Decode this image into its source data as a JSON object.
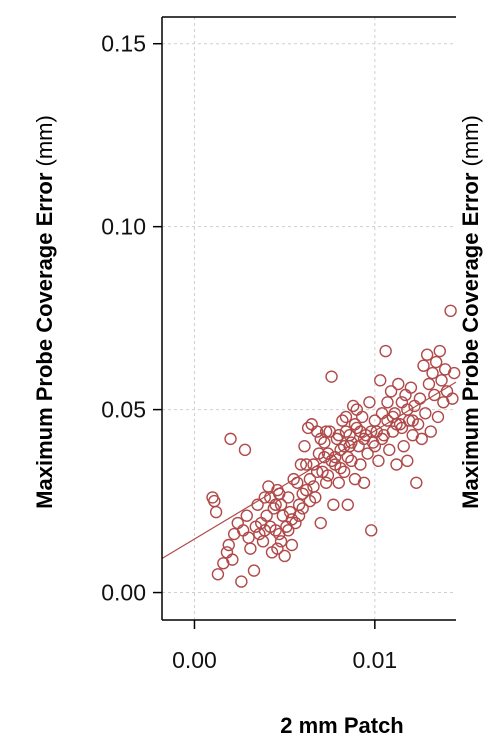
{
  "chart_data": {
    "type": "scatter",
    "ylabel_bold": "Maximum Probe Coverage Error",
    "ylabel_unit": " (mm)",
    "xlabel": "2 mm Patch",
    "xlim": [
      -0.0018,
      0.0145
    ],
    "ylim": [
      -0.0075,
      0.1573
    ],
    "x_ticks": [
      0.0,
      0.01
    ],
    "x_tick_labels": [
      "0.00",
      "0.01"
    ],
    "y_ticks": [
      0.0,
      0.05,
      0.1,
      0.15
    ],
    "y_tick_labels": [
      "0.00",
      "0.05",
      "0.10",
      "0.15"
    ],
    "grid": true,
    "marker_color": "#b04a4a",
    "fit_line": {
      "x1": -0.0018,
      "y1": 0.0093,
      "x2": 0.0145,
      "y2": 0.0575
    },
    "points": [
      [
        0.001,
        0.026
      ],
      [
        0.0011,
        0.025
      ],
      [
        0.0012,
        0.022
      ],
      [
        0.0013,
        0.005
      ],
      [
        0.0016,
        0.008
      ],
      [
        0.0018,
        0.011
      ],
      [
        0.0019,
        0.013
      ],
      [
        0.002,
        0.042
      ],
      [
        0.0021,
        0.009
      ],
      [
        0.0022,
        0.016
      ],
      [
        0.0024,
        0.019
      ],
      [
        0.0026,
        0.003
      ],
      [
        0.0027,
        0.017
      ],
      [
        0.0028,
        0.039
      ],
      [
        0.0029,
        0.021
      ],
      [
        0.003,
        0.015
      ],
      [
        0.0031,
        0.012
      ],
      [
        0.0033,
        0.006
      ],
      [
        0.0034,
        0.018
      ],
      [
        0.0035,
        0.024
      ],
      [
        0.0036,
        0.016
      ],
      [
        0.0037,
        0.019
      ],
      [
        0.0038,
        0.014
      ],
      [
        0.0039,
        0.026
      ],
      [
        0.004,
        0.021
      ],
      [
        0.0041,
        0.029
      ],
      [
        0.0042,
        0.018
      ],
      [
        0.0043,
        0.011
      ],
      [
        0.0044,
        0.023
      ],
      [
        0.0045,
        0.017
      ],
      [
        0.0046,
        0.028
      ],
      [
        0.0047,
        0.016
      ],
      [
        0.0048,
        0.024
      ],
      [
        0.0049,
        0.021
      ],
      [
        0.005,
        0.01
      ],
      [
        0.0051,
        0.018
      ],
      [
        0.0052,
        0.026
      ],
      [
        0.0053,
        0.022
      ],
      [
        0.0054,
        0.013
      ],
      [
        0.0055,
        0.031
      ],
      [
        0.0056,
        0.019
      ],
      [
        0.0057,
        0.03
      ],
      [
        0.0058,
        0.024
      ],
      [
        0.0059,
        0.035
      ],
      [
        0.006,
        0.027
      ],
      [
        0.0061,
        0.04
      ],
      [
        0.0062,
        0.028
      ],
      [
        0.0063,
        0.045
      ],
      [
        0.0064,
        0.031
      ],
      [
        0.0065,
        0.046
      ],
      [
        0.0066,
        0.035
      ],
      [
        0.0067,
        0.026
      ],
      [
        0.0068,
        0.044
      ],
      [
        0.0069,
        0.038
      ],
      [
        0.007,
        0.019
      ],
      [
        0.0071,
        0.033
      ],
      [
        0.0072,
        0.041
      ],
      [
        0.0073,
        0.03
      ],
      [
        0.0074,
        0.038
      ],
      [
        0.0075,
        0.044
      ],
      [
        0.0076,
        0.059
      ],
      [
        0.0077,
        0.024
      ],
      [
        0.0078,
        0.035
      ],
      [
        0.0079,
        0.042
      ],
      [
        0.008,
        0.03
      ],
      [
        0.0081,
        0.039
      ],
      [
        0.0082,
        0.047
      ],
      [
        0.0083,
        0.033
      ],
      [
        0.0084,
        0.044
      ],
      [
        0.0085,
        0.024
      ],
      [
        0.0086,
        0.04
      ],
      [
        0.0087,
        0.036
      ],
      [
        0.0088,
        0.051
      ],
      [
        0.0089,
        0.031
      ],
      [
        0.009,
        0.045
      ],
      [
        0.0091,
        0.04
      ],
      [
        0.0092,
        0.035
      ],
      [
        0.0093,
        0.048
      ],
      [
        0.0094,
        0.03
      ],
      [
        0.0095,
        0.043
      ],
      [
        0.0096,
        0.038
      ],
      [
        0.0097,
        0.052
      ],
      [
        0.0098,
        0.017
      ],
      [
        0.0099,
        0.041
      ],
      [
        0.01,
        0.047
      ],
      [
        0.0101,
        0.044
      ],
      [
        0.0102,
        0.036
      ],
      [
        0.0103,
        0.058
      ],
      [
        0.0104,
        0.049
      ],
      [
        0.0105,
        0.043
      ],
      [
        0.0106,
        0.066
      ],
      [
        0.0107,
        0.047
      ],
      [
        0.0108,
        0.039
      ],
      [
        0.0109,
        0.055
      ],
      [
        0.011,
        0.044
      ],
      [
        0.0111,
        0.049
      ],
      [
        0.0112,
        0.035
      ],
      [
        0.0113,
        0.057
      ],
      [
        0.0114,
        0.046
      ],
      [
        0.0115,
        0.052
      ],
      [
        0.0116,
        0.04
      ],
      [
        0.0117,
        0.054
      ],
      [
        0.0118,
        0.036
      ],
      [
        0.0119,
        0.047
      ],
      [
        0.012,
        0.056
      ],
      [
        0.0121,
        0.043
      ],
      [
        0.0122,
        0.051
      ],
      [
        0.0123,
        0.03
      ],
      [
        0.0124,
        0.046
      ],
      [
        0.0125,
        0.053
      ],
      [
        0.0126,
        0.042
      ],
      [
        0.0127,
        0.062
      ],
      [
        0.0128,
        0.049
      ],
      [
        0.0129,
        0.065
      ],
      [
        0.013,
        0.057
      ],
      [
        0.0131,
        0.044
      ],
      [
        0.0132,
        0.06
      ],
      [
        0.0133,
        0.054
      ],
      [
        0.0134,
        0.063
      ],
      [
        0.0135,
        0.048
      ],
      [
        0.0136,
        0.066
      ],
      [
        0.0137,
        0.058
      ],
      [
        0.0138,
        0.052
      ],
      [
        0.0139,
        0.061
      ],
      [
        0.014,
        0.055
      ],
      [
        0.0142,
        0.077
      ],
      [
        0.0143,
        0.053
      ],
      [
        0.0144,
        0.06
      ],
      [
        0.0084,
        0.048
      ],
      [
        0.0086,
        0.043
      ],
      [
        0.0089,
        0.046
      ],
      [
        0.0083,
        0.04
      ],
      [
        0.008,
        0.043
      ],
      [
        0.0078,
        0.037
      ],
      [
        0.009,
        0.05
      ],
      [
        0.0092,
        0.044
      ],
      [
        0.0087,
        0.041
      ],
      [
        0.0074,
        0.032
      ],
      [
        0.0076,
        0.036
      ],
      [
        0.0072,
        0.037
      ],
      [
        0.0068,
        0.033
      ],
      [
        0.0066,
        0.029
      ],
      [
        0.0064,
        0.025
      ],
      [
        0.006,
        0.023
      ],
      [
        0.0058,
        0.021
      ],
      [
        0.0054,
        0.02
      ],
      [
        0.0052,
        0.017
      ],
      [
        0.0048,
        0.014
      ],
      [
        0.0046,
        0.012
      ],
      [
        0.0045,
        0.024
      ],
      [
        0.0047,
        0.027
      ],
      [
        0.0042,
        0.026
      ],
      [
        0.0039,
        0.017
      ],
      [
        0.0062,
        0.035
      ],
      [
        0.007,
        0.042
      ],
      [
        0.0073,
        0.044
      ],
      [
        0.0081,
        0.034
      ],
      [
        0.0085,
        0.037
      ],
      [
        0.0094,
        0.042
      ],
      [
        0.0098,
        0.044
      ],
      [
        0.01,
        0.04
      ],
      [
        0.0104,
        0.042
      ],
      [
        0.0107,
        0.052
      ],
      [
        0.011,
        0.048
      ],
      [
        0.0112,
        0.046
      ],
      [
        0.0115,
        0.045
      ],
      [
        0.0118,
        0.05
      ],
      [
        0.0121,
        0.047
      ]
    ]
  }
}
